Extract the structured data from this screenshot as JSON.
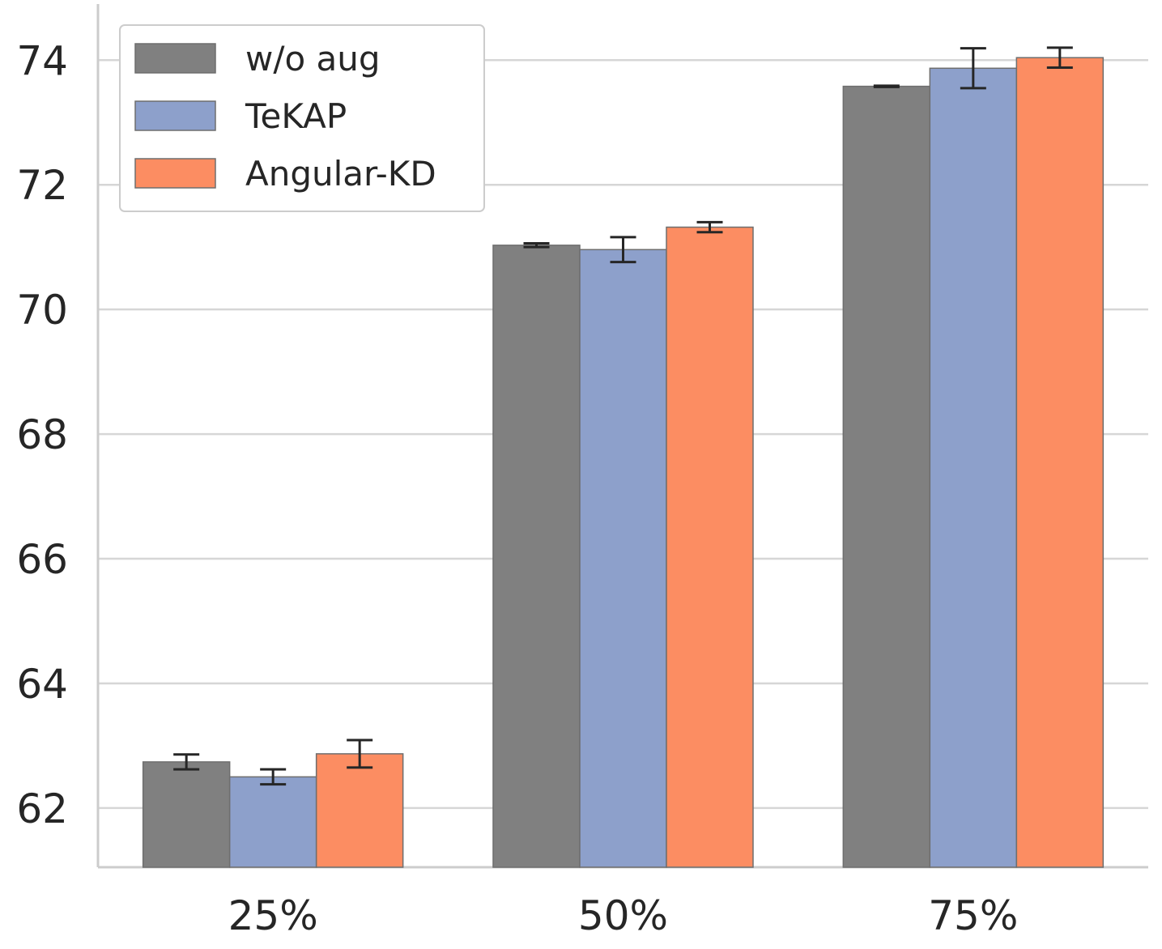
{
  "chart_data": {
    "type": "bar",
    "title": "",
    "xlabel": "",
    "ylabel": "",
    "categories": [
      "25%",
      "50%",
      "75%"
    ],
    "ylim": [
      61.05,
      74.9
    ],
    "yticks": [
      62,
      64,
      66,
      68,
      70,
      72,
      74
    ],
    "grid": true,
    "legend_position": "top-left",
    "series": [
      {
        "name": "w/o aug",
        "color": "#808080",
        "values": [
          62.74,
          71.03,
          73.58
        ],
        "errors": [
          0.12,
          0.03,
          0.01
        ]
      },
      {
        "name": "TeKAP",
        "color": "#8da0cb",
        "values": [
          62.5,
          70.96,
          73.87
        ],
        "errors": [
          0.12,
          0.2,
          0.32
        ]
      },
      {
        "name": "Angular-KD",
        "color": "#fc8d62",
        "values": [
          62.87,
          71.32,
          74.04
        ],
        "errors": [
          0.22,
          0.08,
          0.16
        ]
      }
    ]
  }
}
